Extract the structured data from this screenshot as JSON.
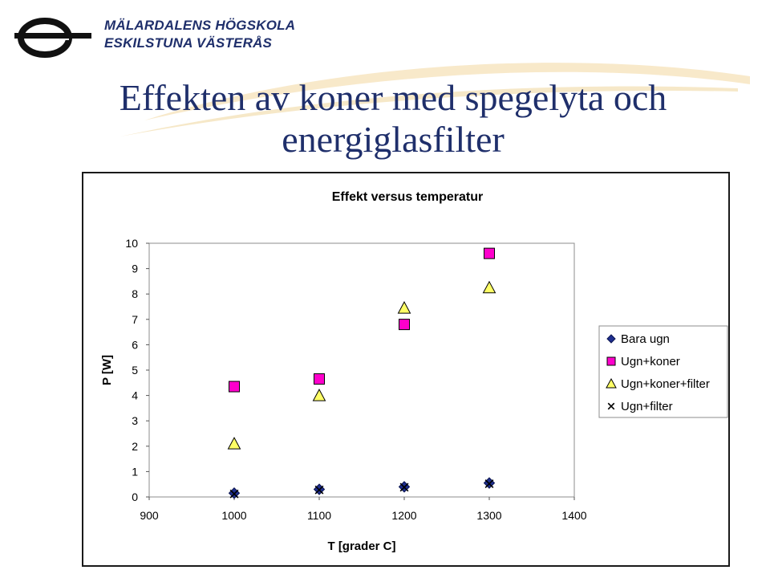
{
  "header": {
    "logo_line1": "MÄLARDALENS HÖGSKOLA",
    "logo_line2": "ESKILSTUNA VÄSTERÅS",
    "title_line1": "Effekten av koner med spegelyta och",
    "title_line2": "energiglasfilter",
    "colors": {
      "title": "#1f2f6b",
      "logo": "#1f2f6b",
      "swoosh": "#f3d9a6"
    }
  },
  "chart_data": {
    "type": "scatter",
    "title": "Effekt versus temperatur",
    "xlabel": "T [grader C]",
    "ylabel": "P  [W]",
    "xlim": [
      900,
      1400
    ],
    "ylim": [
      0,
      10
    ],
    "xticks": [
      900,
      1000,
      1100,
      1200,
      1300,
      1400
    ],
    "yticks": [
      0,
      1,
      2,
      3,
      4,
      5,
      6,
      7,
      8,
      9,
      10
    ],
    "grid": false,
    "legend_position": "right",
    "series": [
      {
        "name": "Bara ugn",
        "marker": "diamond",
        "color": "#1f2f8f",
        "x": [
          1000,
          1100,
          1200,
          1300
        ],
        "y": [
          0.15,
          0.3,
          0.4,
          0.55
        ]
      },
      {
        "name": "Ugn+koner",
        "marker": "square",
        "color": "#ff00cc",
        "x": [
          1000,
          1100,
          1200,
          1300
        ],
        "y": [
          4.35,
          4.65,
          6.8,
          9.6
        ]
      },
      {
        "name": "Ugn+koner+filter",
        "marker": "triangle",
        "color": "#ffff66",
        "x": [
          1000,
          1100,
          1200,
          1300
        ],
        "y": [
          2.1,
          4.0,
          7.45,
          8.25
        ]
      },
      {
        "name": "Ugn+filter",
        "marker": "x",
        "color": "#000000",
        "x": [
          1000,
          1100,
          1200,
          1300
        ],
        "y": [
          0.12,
          0.28,
          0.38,
          0.52
        ]
      }
    ]
  }
}
